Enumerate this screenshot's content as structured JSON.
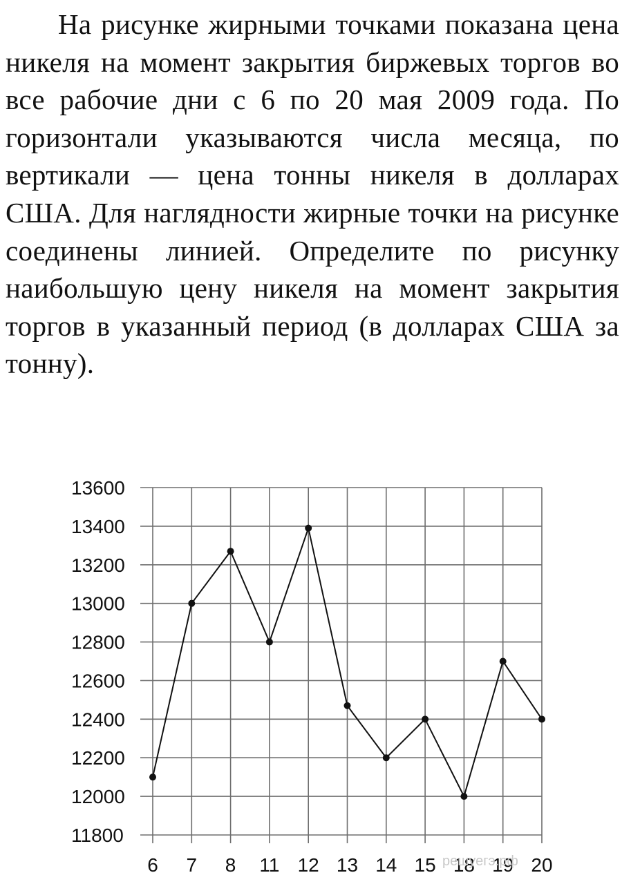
{
  "problem": {
    "text": "На рисунке жирными точками показана цена никеля на момент закрытия биржевых торгов во все рабочие дни с 6 по 20 мая 2009 года. По горизонтали указываются числа месяца, по вертикали — цена тонны никеля в долларах США. Для наглядности жирные точки на рисунке соединены линией. Определите по рисунку наибольшую цену никеля на момент закрытия торгов в указанный период (в долларах США за тонну)."
  },
  "watermark": "решуегэ.рф",
  "chart_data": {
    "type": "line",
    "title": "",
    "xlabel": "",
    "ylabel": "",
    "x": [
      "6",
      "7",
      "8",
      "11",
      "12",
      "13",
      "14",
      "15",
      "18",
      "19",
      "20"
    ],
    "y": [
      12100,
      13000,
      13270,
      12800,
      13390,
      12470,
      12200,
      12400,
      12000,
      12700,
      12400
    ],
    "ylim": [
      11800,
      13600
    ],
    "yticks": [
      13600,
      13400,
      13200,
      13000,
      12800,
      12600,
      12400,
      12200,
      12000,
      11800
    ],
    "ytick_labels": [
      "13600",
      "13400",
      "13200",
      "13000",
      "12800",
      "12600",
      "12400",
      "12200",
      "12000",
      "11800"
    ],
    "grid": true,
    "line_color": "#111111",
    "grid_color": "#6e6e6e"
  }
}
